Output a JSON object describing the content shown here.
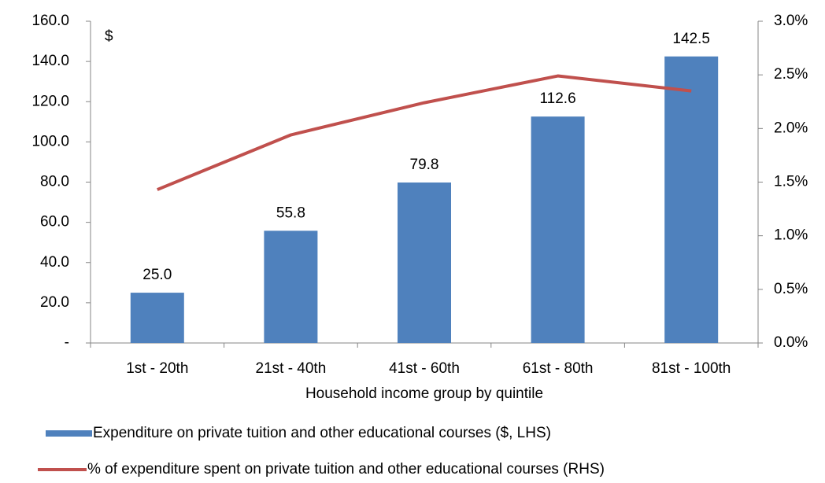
{
  "chart_data": {
    "type": "bar",
    "annotation": "$",
    "x_label": "Household income group by quintile",
    "categories": [
      "1st - 20th",
      "21st - 40th",
      "41st - 60th",
      "61st - 80th",
      "81st - 100th"
    ],
    "series": [
      {
        "name": "Expenditure on private tuition and other educational courses ($, LHS)",
        "type": "bar",
        "color": "#4f81bd",
        "values": [
          25.0,
          55.8,
          79.8,
          112.6,
          142.5
        ],
        "value_labels": [
          "25.0",
          "55.8",
          "79.8",
          "112.6",
          "142.5"
        ]
      },
      {
        "name": "% of expenditure spent on private tuition and other educational courses (RHS)",
        "type": "line",
        "color": "#c0504d",
        "axis": "y2",
        "values": [
          1.43,
          1.94,
          2.24,
          2.49,
          2.35
        ]
      }
    ],
    "ylim": [
      0,
      160
    ],
    "yticks": [
      {
        "value": 0,
        "label": "-"
      },
      {
        "value": 20,
        "label": "20.0"
      },
      {
        "value": 40,
        "label": "40.0"
      },
      {
        "value": 60,
        "label": "60.0"
      },
      {
        "value": 80,
        "label": "80.0"
      },
      {
        "value": 100,
        "label": "100.0"
      },
      {
        "value": 120,
        "label": "120.0"
      },
      {
        "value": 140,
        "label": "140.0"
      },
      {
        "value": 160,
        "label": "160.0"
      }
    ],
    "y2lim": [
      0,
      3
    ],
    "y2ticks": [
      {
        "value": 0,
        "label": "0.0%"
      },
      {
        "value": 0.5,
        "label": "0.5%"
      },
      {
        "value": 1,
        "label": "1.0%"
      },
      {
        "value": 1.5,
        "label": "1.5%"
      },
      {
        "value": 2,
        "label": "2.0%"
      },
      {
        "value": 2.5,
        "label": "2.5%"
      },
      {
        "value": 3,
        "label": "3.0%"
      }
    ],
    "grid": false,
    "legend": "bottom"
  }
}
